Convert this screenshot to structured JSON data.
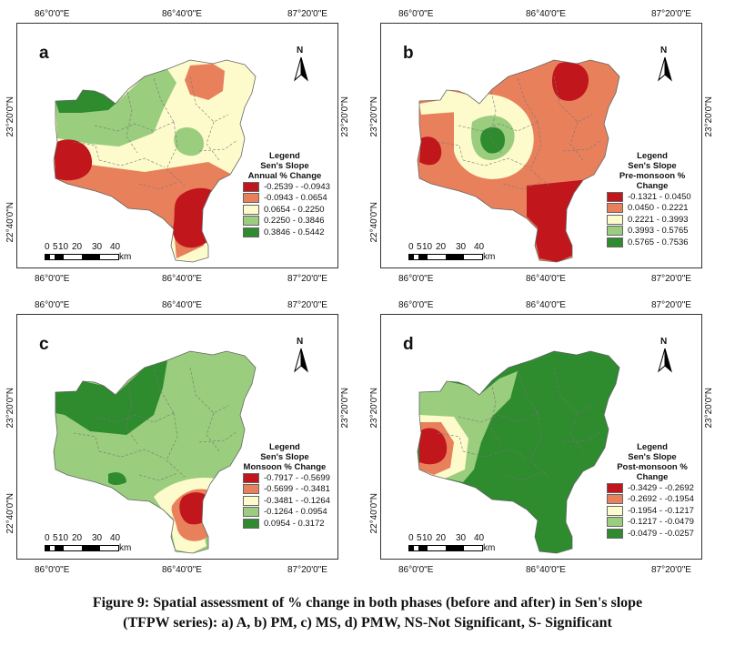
{
  "colors": {
    "c1": "#c0161c",
    "c2": "#e8805b",
    "c3": "#fdfbcb",
    "c4": "#9acd7d",
    "c5": "#2e8b2e",
    "boundary": "#666666"
  },
  "axis_labels": {
    "lon1": "86°0'0\"E",
    "lon2": "86°40'0\"E",
    "lon3": "87°20'0\"E",
    "lat1": "23°20'0\"N",
    "lat2": "22°40'0\"N"
  },
  "north_label": "N",
  "scale": {
    "labels": [
      "0",
      "5",
      "10",
      "20",
      "30",
      "40"
    ],
    "unit": "km"
  },
  "legend_title": "Legend",
  "legend_subtitle": "Sen's Slope",
  "panels": [
    {
      "letter": "a",
      "variable": "Annual % Change",
      "classes": [
        "-0.2539 - -0.0943",
        "-0.0943 - 0.0654",
        "0.0654 - 0.2250",
        "0.2250 - 0.3846",
        "0.3846 - 0.5442"
      ]
    },
    {
      "letter": "b",
      "variable": "Pre-monsoon % Change",
      "classes": [
        "-0.1321 - 0.0450",
        "0.0450 - 0.2221",
        "0.2221 - 0.3993",
        "0.3993 - 0.5765",
        "0.5765 - 0.7536"
      ]
    },
    {
      "letter": "c",
      "variable": "Monsoon % Change",
      "classes": [
        "-0.7917 - -0.5699",
        "-0.5699 - -0.3481",
        "-0.3481 - -0.1264",
        "-0.1264 - 0.0954",
        "0.0954 - 0.3172"
      ]
    },
    {
      "letter": "d",
      "variable": "Post-monsoon % Change",
      "classes": [
        "-0.3429 - -0.2692",
        "-0.2692 - -0.1954",
        "-0.1954 - -0.1217",
        "-0.1217 - -0.0479",
        "-0.0479 - -0.0257"
      ]
    }
  ],
  "caption_line1": "Figure 9: Spatial assessment of % change in both phases (before and after) in Sen's slope",
  "caption_line2": "(TFPW series): a) A, b) PM, c) MS, d) PMW, NS-Not Significant, S- Significant"
}
